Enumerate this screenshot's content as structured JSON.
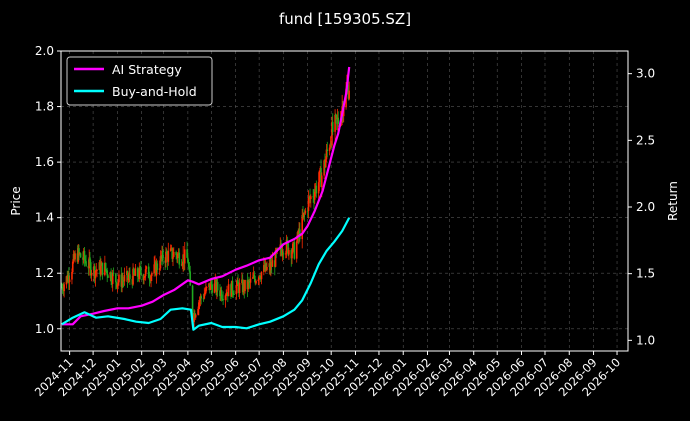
{
  "chart_data": {
    "type": "line",
    "title": "fund [159305.SZ]",
    "ylabel": "Price",
    "y2label": "Return",
    "x_ticks": [
      "2024-11",
      "2024-12",
      "2025-01",
      "2025-02",
      "2025-03",
      "2025-04",
      "2025-05",
      "2025-06",
      "2025-07",
      "2025-08",
      "2025-09",
      "2025-10",
      "2025-11",
      "2025-12",
      "2026-01",
      "2026-02",
      "2026-03",
      "2026-04",
      "2026-05",
      "2026-06",
      "2026-07",
      "2026-08",
      "2026-09",
      "2026-10"
    ],
    "xlim": [
      "2024-10-21",
      "2026-10-15"
    ],
    "ylim": [
      0.92,
      2.0
    ],
    "y_ticks": [
      1.0,
      1.2,
      1.4,
      1.6,
      1.8,
      2.0
    ],
    "y2lim": [
      0.92,
      3.17
    ],
    "y2_ticks": [
      1.0,
      1.5,
      2.0,
      2.5,
      3.0
    ],
    "grid": true,
    "legend_position": "top-left",
    "colors": {
      "background": "#000000",
      "ai_strategy": "#ff00ff",
      "buy_and_hold": "#00ffff",
      "candle_up": "#ff2a00",
      "candle_down": "#1faa1f",
      "grid": "#555555"
    },
    "series": [
      {
        "name": "AI Strategy",
        "axis": "Return",
        "x": [
          "2024-10-22",
          "2024-11-05",
          "2024-11-15",
          "2024-12-01",
          "2024-12-15",
          "2025-01-01",
          "2025-01-15",
          "2025-02-01",
          "2025-02-15",
          "2025-03-01",
          "2025-03-15",
          "2025-04-01",
          "2025-04-07",
          "2025-04-15",
          "2025-05-01",
          "2025-05-15",
          "2025-06-01",
          "2025-06-15",
          "2025-07-01",
          "2025-07-15",
          "2025-08-01",
          "2025-08-15",
          "2025-08-25",
          "2025-09-01",
          "2025-09-10",
          "2025-09-20",
          "2025-09-28",
          "2025-10-05",
          "2025-10-10",
          "2025-10-15",
          "2025-10-20",
          "2025-10-24"
        ],
        "values": [
          1.12,
          1.12,
          1.18,
          1.2,
          1.22,
          1.24,
          1.24,
          1.26,
          1.29,
          1.34,
          1.38,
          1.45,
          1.44,
          1.42,
          1.46,
          1.48,
          1.53,
          1.56,
          1.6,
          1.62,
          1.72,
          1.76,
          1.8,
          1.86,
          1.97,
          2.12,
          2.3,
          2.46,
          2.55,
          2.7,
          2.85,
          3.05
        ]
      },
      {
        "name": "Buy-and-Hold",
        "axis": "Return",
        "x": [
          "2024-10-22",
          "2024-11-05",
          "2024-11-20",
          "2024-12-05",
          "2024-12-20",
          "2025-01-10",
          "2025-01-25",
          "2025-02-10",
          "2025-02-25",
          "2025-03-10",
          "2025-03-25",
          "2025-04-05",
          "2025-04-08",
          "2025-04-15",
          "2025-05-01",
          "2025-05-15",
          "2025-06-01",
          "2025-06-15",
          "2025-07-01",
          "2025-07-15",
          "2025-08-01",
          "2025-08-15",
          "2025-08-25",
          "2025-09-05",
          "2025-09-15",
          "2025-09-25",
          "2025-10-05",
          "2025-10-15",
          "2025-10-24"
        ],
        "values": [
          1.12,
          1.17,
          1.21,
          1.17,
          1.18,
          1.16,
          1.14,
          1.13,
          1.16,
          1.23,
          1.24,
          1.23,
          1.08,
          1.11,
          1.13,
          1.1,
          1.1,
          1.09,
          1.12,
          1.14,
          1.18,
          1.23,
          1.3,
          1.43,
          1.57,
          1.67,
          1.74,
          1.82,
          1.92
        ]
      },
      {
        "name": "Price",
        "axis": "Price",
        "type": "candlestick",
        "x": [
          "2024-10-22",
          "2024-11-01",
          "2024-11-10",
          "2024-11-20",
          "2024-12-01",
          "2024-12-15",
          "2025-01-01",
          "2025-01-15",
          "2025-02-01",
          "2025-02-15",
          "2025-03-01",
          "2025-03-15",
          "2025-04-01",
          "2025-04-07",
          "2025-04-15",
          "2025-05-01",
          "2025-05-15",
          "2025-06-01",
          "2025-06-15",
          "2025-07-01",
          "2025-07-15",
          "2025-08-01",
          "2025-08-15",
          "2025-09-01",
          "2025-09-10",
          "2025-09-20",
          "2025-10-01",
          "2025-10-10",
          "2025-10-20",
          "2025-10-24"
        ],
        "values": [
          1.15,
          1.2,
          1.27,
          1.25,
          1.21,
          1.22,
          1.17,
          1.18,
          1.2,
          1.2,
          1.26,
          1.27,
          1.25,
          1.04,
          1.1,
          1.16,
          1.13,
          1.15,
          1.15,
          1.2,
          1.22,
          1.3,
          1.28,
          1.45,
          1.5,
          1.56,
          1.7,
          1.75,
          1.85,
          1.88
        ]
      }
    ]
  }
}
